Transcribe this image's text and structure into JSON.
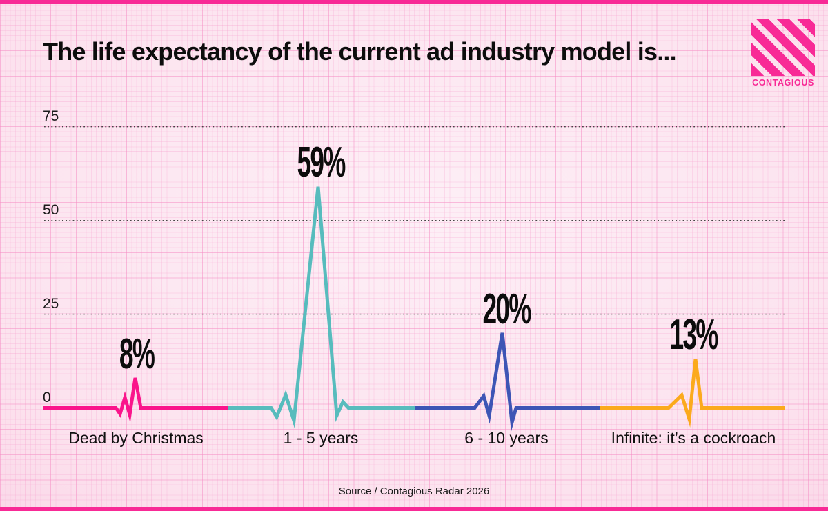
{
  "title": "The life expectancy of the current ad industry model is...",
  "logo": {
    "text": "CONTAGIOUS",
    "color": "#f82a96"
  },
  "colors": {
    "background": "#fce2ee",
    "grid_pink": "#f58ac2",
    "edge_strip": "#f82a96",
    "text": "#0d0d0d",
    "gridline_dotted": "#454545"
  },
  "chart_data": {
    "type": "line",
    "variant": "ecg-heartbeat-pulse",
    "title": "The life expectancy of the current ad industry model is...",
    "categories": [
      "Dead by Christmas",
      "1 - 5 years",
      "6 - 10 years",
      "Infinite: it’s a cockroach"
    ],
    "values": [
      8,
      59,
      20,
      13
    ],
    "value_labels": [
      "8%",
      "59%",
      "20%",
      "13%"
    ],
    "series_colors": [
      "#fa158b",
      "#57bcbd",
      "#3d55b5",
      "#fbaa1d"
    ],
    "yticks": [
      0,
      25,
      50,
      75
    ],
    "ytick_labels": [
      "0",
      "25",
      "50",
      "75"
    ],
    "ylim": [
      -5,
      80
    ],
    "xlabel": "",
    "ylabel": "",
    "grid": "horizontal-dotted",
    "legend": "none",
    "source": "Source / Contagious Radar 2026"
  }
}
